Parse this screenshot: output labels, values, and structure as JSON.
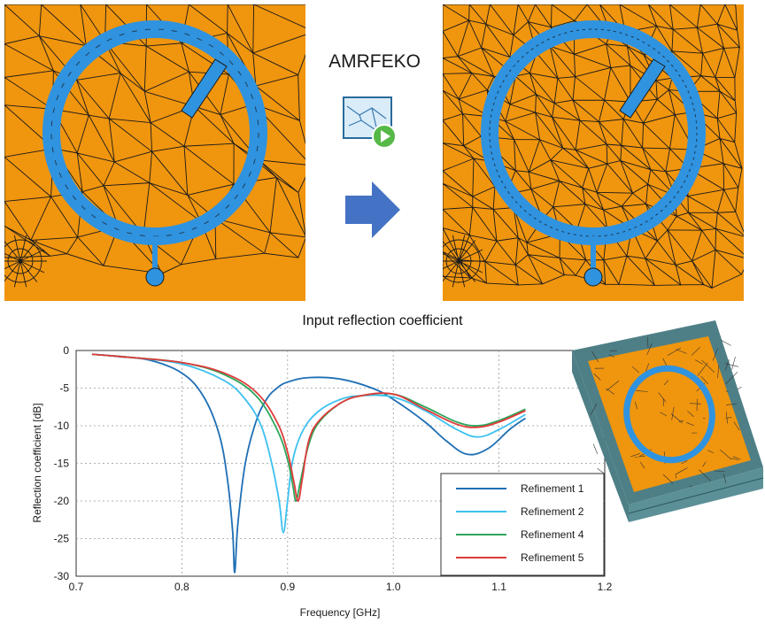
{
  "flow_label": "AMRFEKO",
  "icons": {
    "play": "play-icon",
    "arrow": "right-arrow-icon"
  },
  "colors": {
    "substrate": "#F0950E",
    "ring": "#2F93E0",
    "mesh": "#1a1a1a",
    "arrow": "#4472C4",
    "box_side": "#4E7F86"
  },
  "chart_data": {
    "type": "line",
    "title": "Input reflection coefficient",
    "xlabel": "Frequency [GHz]",
    "ylabel": "Reflection coefficient [dB]",
    "xlim": [
      0.7,
      1.2
    ],
    "ylim": [
      -30,
      0
    ],
    "xticks": [
      "0.7",
      "0.8",
      "0.9",
      "1.0",
      "1.1",
      "1.2"
    ],
    "yticks": [
      "0",
      "-5",
      "-10",
      "-15",
      "-20",
      "-25",
      "-30"
    ],
    "grid": true,
    "legend_position": "bottom-right",
    "series": [
      {
        "name": "Refinement 1",
        "color": "#1F6FB5",
        "x": [
          0.715,
          0.74,
          0.77,
          0.8,
          0.82,
          0.835,
          0.843,
          0.848,
          0.85,
          0.853,
          0.86,
          0.87,
          0.88,
          0.89,
          0.9,
          0.92,
          0.95,
          0.98,
          1.0,
          1.03,
          1.05,
          1.07,
          1.09,
          1.11,
          1.125
        ],
        "y": [
          -0.5,
          -0.8,
          -1.3,
          -3.0,
          -6.0,
          -11.0,
          -17.0,
          -24.0,
          -29.5,
          -23.0,
          -15.0,
          -9.5,
          -6.5,
          -5.0,
          -4.2,
          -3.6,
          -3.8,
          -5.0,
          -6.5,
          -9.5,
          -12.0,
          -13.8,
          -13.0,
          -10.5,
          -9.0
        ]
      },
      {
        "name": "Refinement 2",
        "color": "#3CC0F0",
        "x": [
          0.715,
          0.75,
          0.8,
          0.84,
          0.86,
          0.875,
          0.885,
          0.892,
          0.896,
          0.9,
          0.905,
          0.915,
          0.93,
          0.95,
          0.97,
          1.0,
          1.03,
          1.06,
          1.08,
          1.1,
          1.125
        ],
        "y": [
          -0.5,
          -0.9,
          -1.8,
          -4.0,
          -6.5,
          -10.0,
          -15.0,
          -20.0,
          -24.2,
          -20.0,
          -14.5,
          -10.5,
          -8.0,
          -6.5,
          -6.0,
          -6.2,
          -8.0,
          -10.5,
          -11.5,
          -10.5,
          -8.5
        ]
      },
      {
        "name": "Refinement 4",
        "color": "#2CA65A",
        "x": [
          0.715,
          0.75,
          0.8,
          0.84,
          0.87,
          0.89,
          0.9,
          0.905,
          0.908,
          0.912,
          0.92,
          0.93,
          0.95,
          0.97,
          1.0,
          1.03,
          1.06,
          1.08,
          1.1,
          1.125
        ],
        "y": [
          -0.5,
          -0.9,
          -1.6,
          -3.2,
          -6.0,
          -10.5,
          -14.5,
          -18.0,
          -20.0,
          -17.5,
          -12.5,
          -9.5,
          -7.0,
          -6.0,
          -5.8,
          -7.5,
          -9.5,
          -10.0,
          -9.3,
          -7.8
        ]
      },
      {
        "name": "Refinement 5",
        "color": "#E03A3A",
        "x": [
          0.715,
          0.75,
          0.8,
          0.84,
          0.87,
          0.89,
          0.9,
          0.906,
          0.91,
          0.914,
          0.92,
          0.93,
          0.95,
          0.97,
          1.0,
          1.03,
          1.06,
          1.08,
          1.1,
          1.125
        ],
        "y": [
          -0.5,
          -0.9,
          -1.6,
          -3.0,
          -5.5,
          -9.5,
          -13.5,
          -17.5,
          -20.0,
          -17.0,
          -12.0,
          -9.3,
          -7.0,
          -6.0,
          -5.8,
          -7.8,
          -9.8,
          -10.2,
          -9.5,
          -8.0
        ]
      }
    ]
  }
}
